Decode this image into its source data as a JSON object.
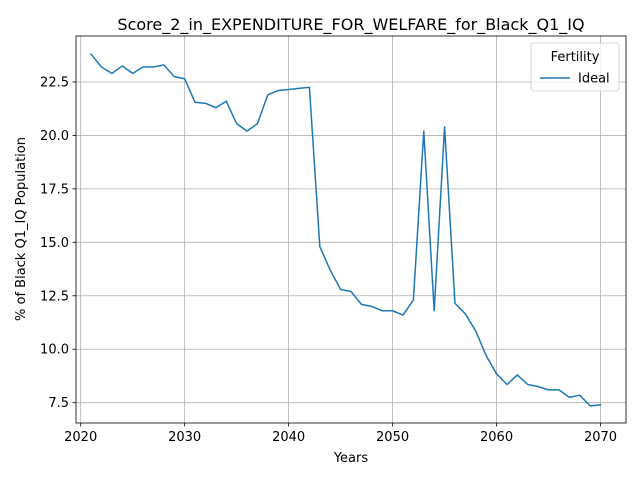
{
  "chart_data": {
    "type": "line",
    "title": "Score_2_in_EXPENDITURE_FOR_WELFARE_for_Black_Q1_IQ",
    "xlabel": "Years",
    "ylabel": "% of Black Q1_IQ Population",
    "xlim": [
      2019.55,
      2072.45
    ],
    "ylim": [
      6.55,
      24.65
    ],
    "xticks": [
      2020,
      2030,
      2040,
      2050,
      2060,
      2070
    ],
    "yticks": [
      7.5,
      10.0,
      12.5,
      15.0,
      17.5,
      20.0,
      22.5
    ],
    "xtick_labels": [
      "2020",
      "2030",
      "2040",
      "2050",
      "2060",
      "2070"
    ],
    "ytick_labels": [
      "7.5",
      "10.0",
      "12.5",
      "15.0",
      "17.5",
      "20.0",
      "22.5"
    ],
    "grid": true,
    "legend": {
      "title": "Fertility",
      "position": "top-right"
    },
    "series": [
      {
        "name": "Ideal",
        "color": "#1f77b4",
        "x": [
          2021,
          2022,
          2023,
          2024,
          2025,
          2026,
          2027,
          2028,
          2029,
          2030,
          2031,
          2032,
          2033,
          2034,
          2035,
          2036,
          2037,
          2038,
          2039,
          2040,
          2041,
          2042,
          2043,
          2044,
          2045,
          2046,
          2047,
          2048,
          2049,
          2050,
          2051,
          2052,
          2053,
          2054,
          2055,
          2056,
          2057,
          2058,
          2059,
          2060,
          2061,
          2062,
          2063,
          2064,
          2065,
          2066,
          2067,
          2068,
          2069,
          2070
        ],
        "values": [
          23.8,
          23.2,
          22.9,
          23.25,
          22.9,
          23.2,
          23.2,
          23.3,
          22.75,
          22.65,
          21.55,
          21.5,
          21.3,
          21.6,
          20.55,
          20.2,
          20.55,
          21.9,
          22.1,
          22.15,
          22.2,
          22.25,
          14.8,
          13.7,
          12.8,
          12.7,
          12.1,
          12.0,
          11.8,
          11.8,
          11.6,
          12.3,
          20.2,
          11.8,
          20.4,
          12.15,
          11.65,
          10.85,
          9.7,
          8.85,
          8.35,
          8.8,
          8.35,
          8.25,
          8.1,
          8.1,
          7.75,
          7.85,
          7.35,
          7.4
        ]
      }
    ]
  }
}
